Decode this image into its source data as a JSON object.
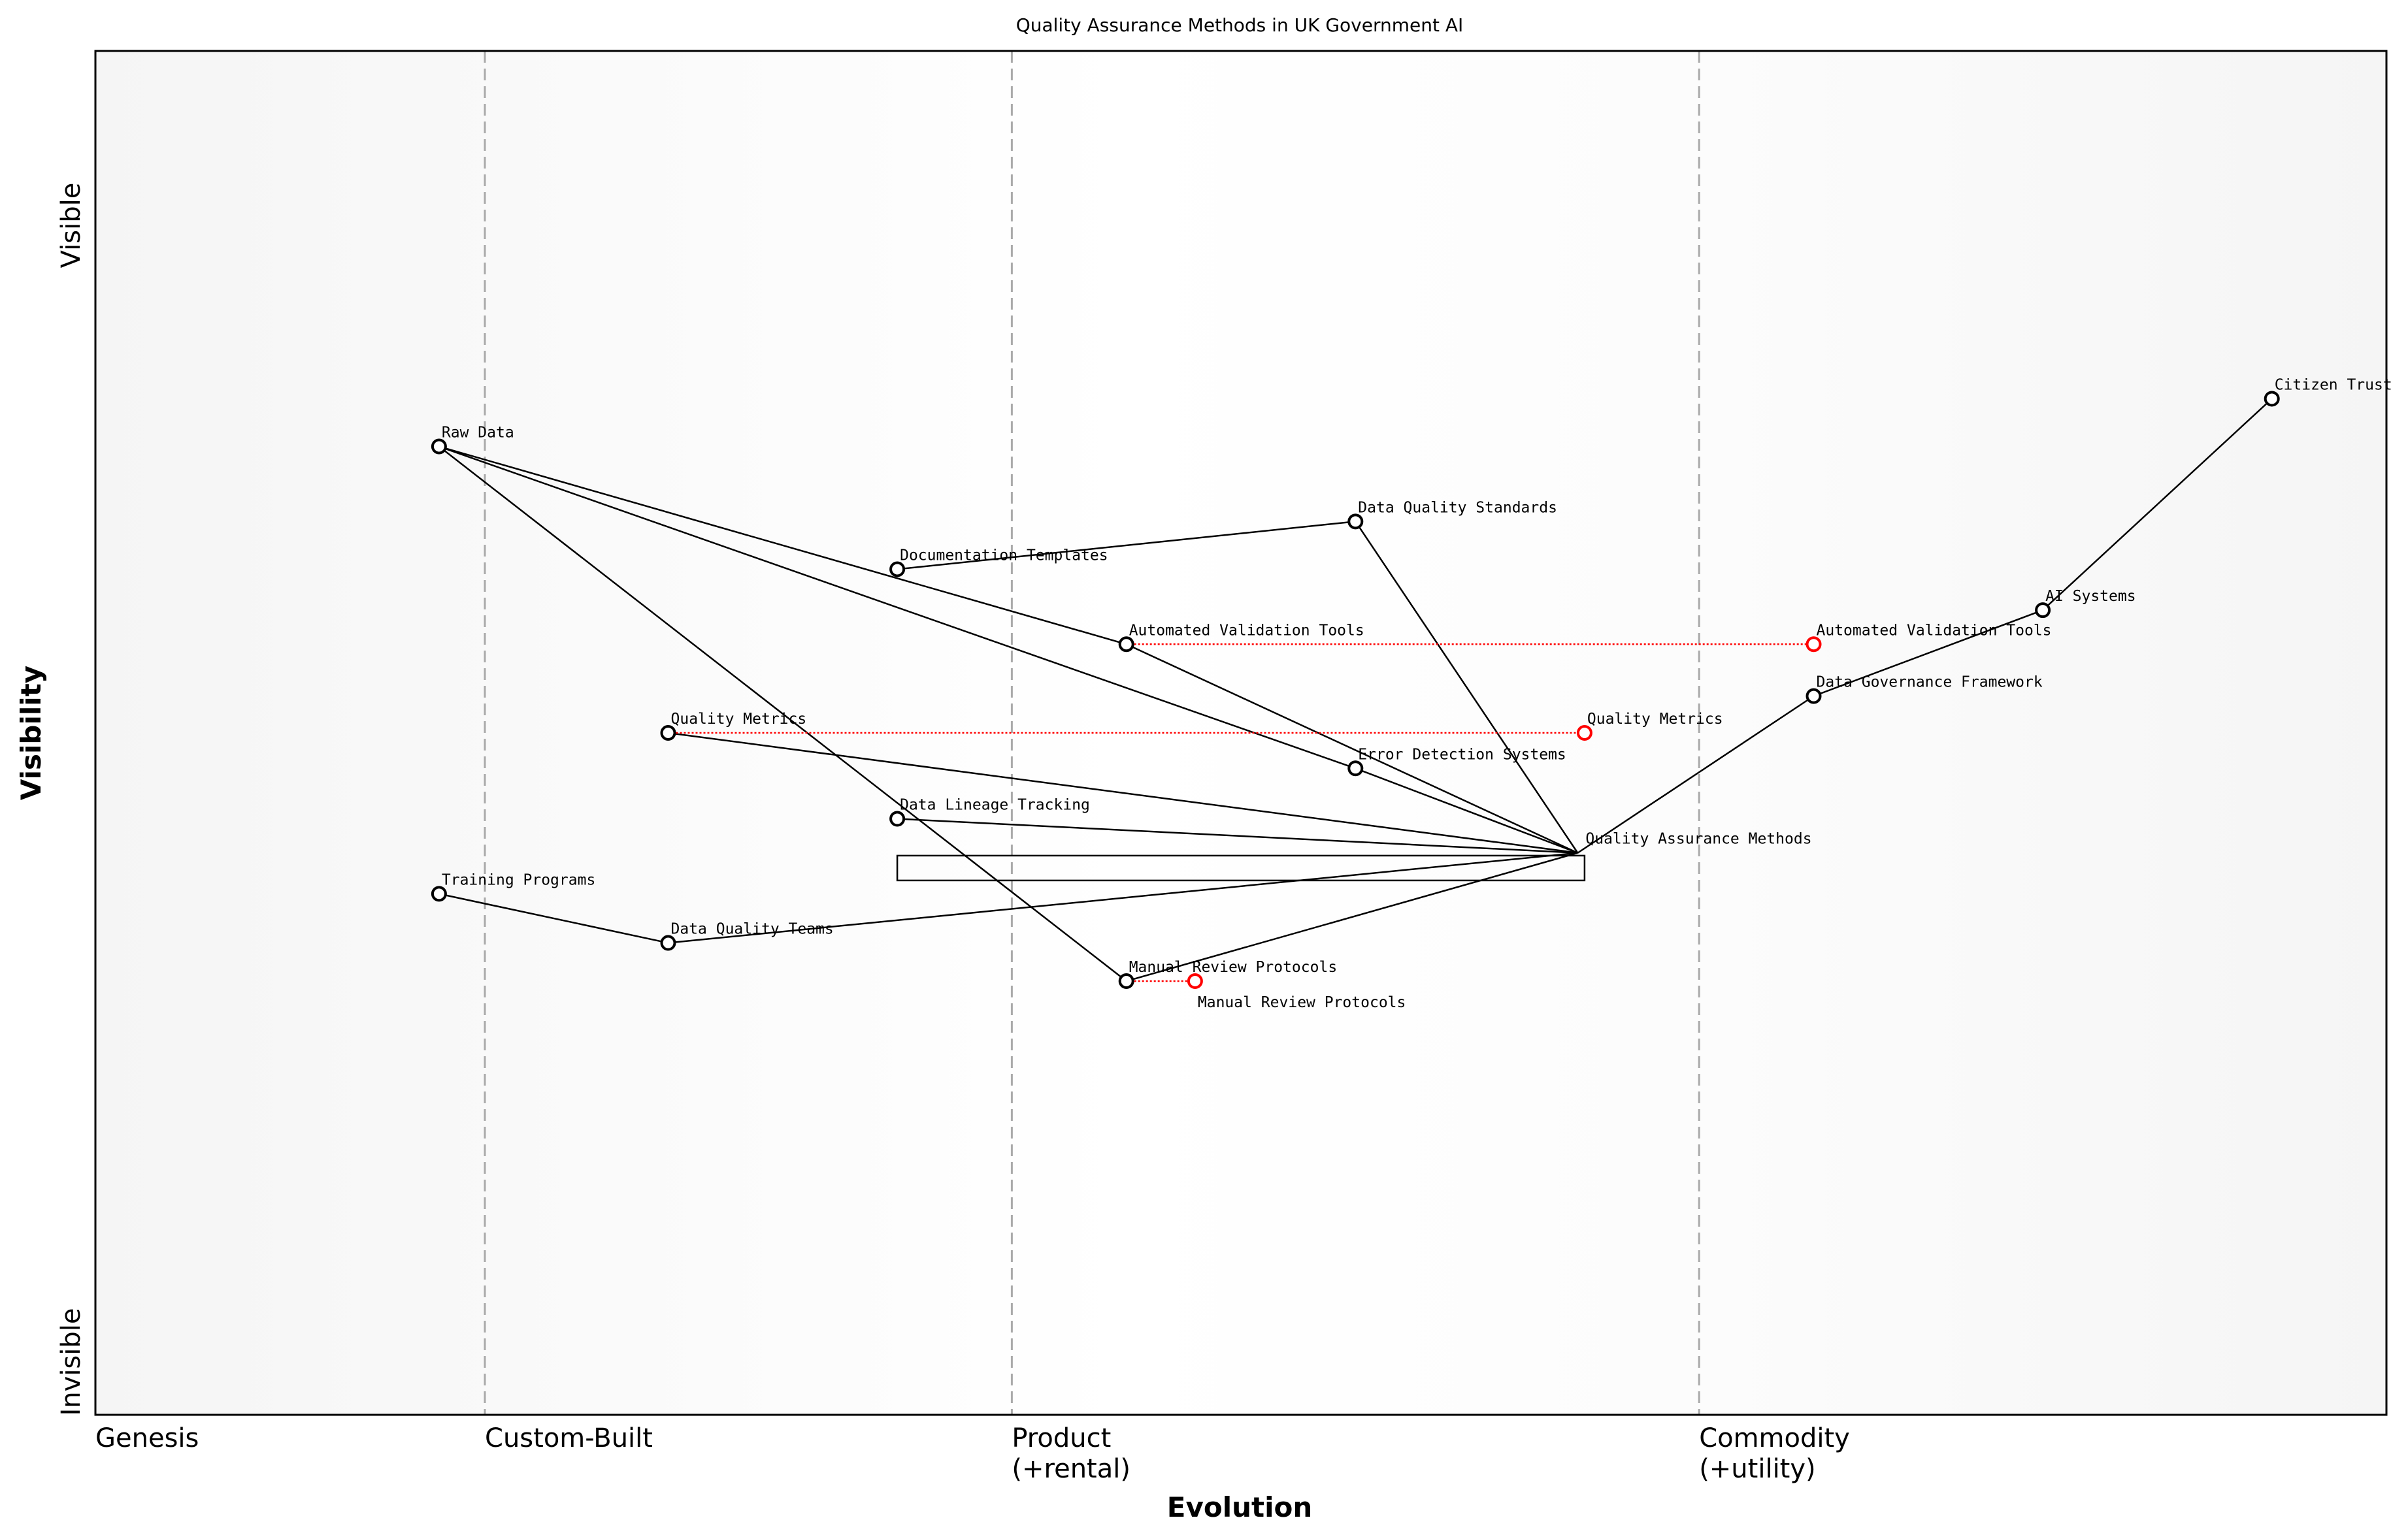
{
  "title": "Quality Assurance Methods in UK Government AI",
  "x_axis": {
    "label": "Evolution",
    "stages": [
      {
        "label": [
          "Genesis"
        ],
        "at": 0.0
      },
      {
        "label": [
          "Custom-Built"
        ],
        "at": 0.17
      },
      {
        "label": [
          "Product",
          "(+rental)"
        ],
        "at": 0.4
      },
      {
        "label": [
          "Commodity",
          "(+utility)"
        ],
        "at": 0.7
      }
    ]
  },
  "y_axis": {
    "label": "Visibility",
    "top_label": "Visible",
    "bottom_label": "Invisible"
  },
  "colors": {
    "node": "#000000",
    "evolved": "#ff0000",
    "stage_line": "#aaaaaa",
    "edge_background": "#f5f5f5"
  },
  "chart_data": {
    "type": "wardley-map",
    "xlim": [
      0,
      1
    ],
    "ylim": [
      0,
      1
    ],
    "components": [
      {
        "name": "Citizen Trust",
        "evolution": 0.95,
        "visibility": 0.745
      },
      {
        "name": "Raw Data",
        "evolution": 0.15,
        "visibility": 0.71
      },
      {
        "name": "Data Quality Standards",
        "evolution": 0.55,
        "visibility": 0.655
      },
      {
        "name": "Documentation Templates",
        "evolution": 0.35,
        "visibility": 0.62
      },
      {
        "name": "AI Systems",
        "evolution": 0.85,
        "visibility": 0.59
      },
      {
        "name": "Automated Validation Tools",
        "evolution": 0.45,
        "visibility": 0.565
      },
      {
        "name": "Data Governance Framework",
        "evolution": 0.75,
        "visibility": 0.527
      },
      {
        "name": "Quality Metrics",
        "evolution": 0.25,
        "visibility": 0.5
      },
      {
        "name": "Error Detection Systems",
        "evolution": 0.55,
        "visibility": 0.474
      },
      {
        "name": "Data Lineage Tracking",
        "evolution": 0.35,
        "visibility": 0.437
      },
      {
        "name": "Quality Assurance Methods",
        "evolution": 0.647,
        "visibility": 0.412,
        "marker": false
      },
      {
        "name": "Training Programs",
        "evolution": 0.15,
        "visibility": 0.382
      },
      {
        "name": "Data Quality Teams",
        "evolution": 0.25,
        "visibility": 0.346
      },
      {
        "name": "Manual Review Protocols",
        "evolution": 0.45,
        "visibility": 0.318
      }
    ],
    "evolutions": [
      {
        "name": "Automated Validation Tools",
        "to": 0.75
      },
      {
        "name": "Quality Metrics",
        "to": 0.65
      },
      {
        "name": "Manual Review Protocols",
        "to": 0.48
      }
    ],
    "links": [
      [
        "Citizen Trust",
        "AI Systems"
      ],
      [
        "AI Systems",
        "Data Governance Framework"
      ],
      [
        "Data Governance Framework",
        "Quality Assurance Methods"
      ],
      [
        "Data Quality Standards",
        "Quality Assurance Methods"
      ],
      [
        "Documentation Templates",
        "Data Quality Standards"
      ],
      [
        "Raw Data",
        "Automated Validation Tools"
      ],
      [
        "Raw Data",
        "Error Detection Systems"
      ],
      [
        "Raw Data",
        "Manual Review Protocols"
      ],
      [
        "Automated Validation Tools",
        "Quality Assurance Methods"
      ],
      [
        "Error Detection Systems",
        "Quality Assurance Methods"
      ],
      [
        "Quality Metrics",
        "Quality Assurance Methods"
      ],
      [
        "Data Lineage Tracking",
        "Quality Assurance Methods"
      ],
      [
        "Data Quality Teams",
        "Quality Assurance Methods"
      ],
      [
        "Manual Review Protocols",
        "Quality Assurance Methods"
      ],
      [
        "Training Programs",
        "Data Quality Teams"
      ]
    ],
    "pipeline": {
      "from": 0.35,
      "to": 0.65,
      "visibility": 0.41
    }
  }
}
